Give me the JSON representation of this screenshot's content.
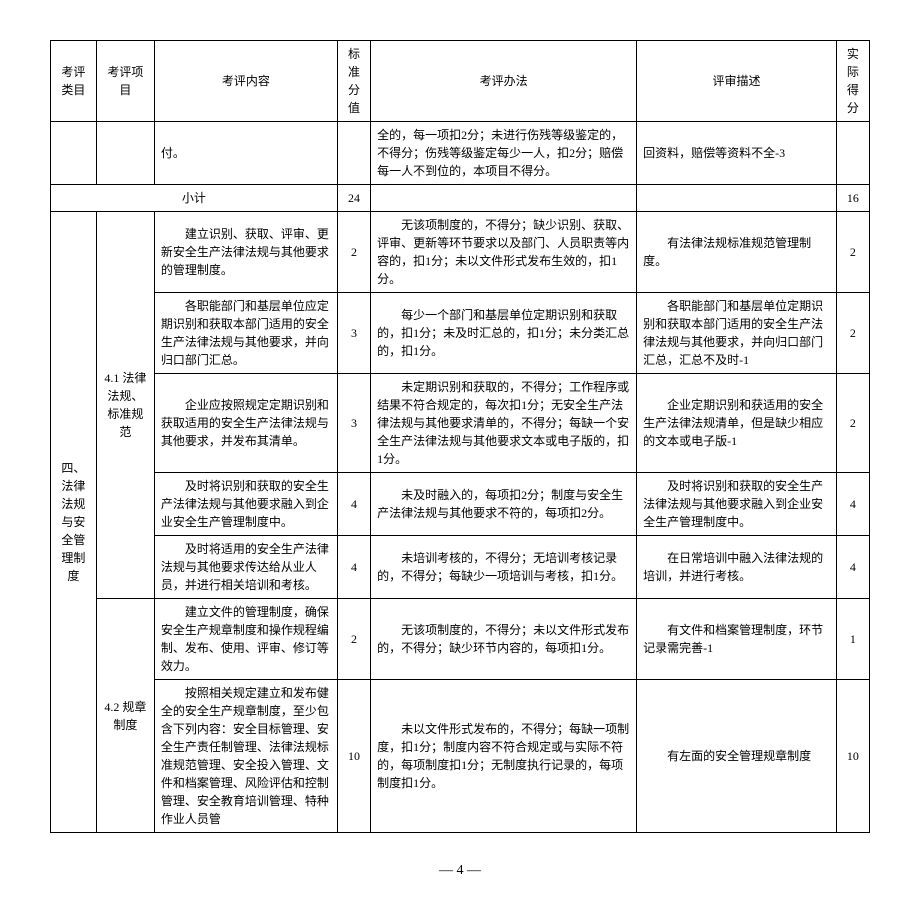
{
  "header": {
    "cat": "考评类目",
    "item": "考评项目",
    "content": "考评内容",
    "std": "标准分值",
    "method": "考评办法",
    "review": "评审描述",
    "actual": "实际得分"
  },
  "row_prev": {
    "content": "付。",
    "method": "全的，每一项扣2分；未进行伤残等级鉴定的，不得分；伤残等级鉴定每少一人，扣2分；赔偿每一人不到位的，本项目不得分。",
    "review": "回资料，赔偿等资料不全-3"
  },
  "subtotal": {
    "label": "小计",
    "std": "24",
    "actual": "16"
  },
  "section": {
    "cat": "四、法律法规与安全管理制度",
    "item41": "4.1 法律法规、标准规范",
    "item42": "4.2 规章制度"
  },
  "rows": [
    {
      "content": "　　建立识别、获取、评审、更新安全生产法律法规与其他要求的管理制度。",
      "std": "2",
      "method": "　　无该项制度的，不得分；缺少识别、获取、评审、更新等环节要求以及部门、人员职责等内容的，扣1分；未以文件形式发布生效的，扣1分。",
      "review": "　　有法律法规标准规范管理制度。",
      "actual": "2"
    },
    {
      "content": "　　各职能部门和基层单位应定期识别和获取本部门适用的安全生产法律法规与其他要求，并向归口部门汇总。",
      "std": "3",
      "method": "　　每少一个部门和基层单位定期识别和获取的，扣1分；未及时汇总的，扣1分；未分类汇总的，扣1分。",
      "review": "　　各职能部门和基层单位定期识别和获取本部门适用的安全生产法律法规与其他要求，并向归口部门汇总，汇总不及时-1",
      "actual": "2"
    },
    {
      "content": "　　企业应按照规定定期识别和获取适用的安全生产法律法规与其他要求，并发布其清单。",
      "std": "3",
      "method": "　　未定期识别和获取的，不得分；工作程序或结果不符合规定的，每次扣1分；无安全生产法律法规与其他要求清单的，不得分；每缺一个安全生产法律法规与其他要求文本或电子版的，扣1分。",
      "review": "　　企业定期识别和获适用的安全生产法律法规清单，但是缺少相应的文本或电子版-1",
      "actual": "2"
    },
    {
      "content": "　　及时将识别和获取的安全生产法律法规与其他要求融入到企业安全生产管理制度中。",
      "std": "4",
      "method": "　　未及时融入的，每项扣2分；制度与安全生产法律法规与其他要求不符的，每项扣2分。",
      "review": "　　及时将识别和获取的安全生产法律法规与其他要求融入到企业安全生产管理制度中。",
      "actual": "4"
    },
    {
      "content": "　　及时将适用的安全生产法律法规与其他要求传达给从业人员，并进行相关培训和考核。",
      "std": "4",
      "method": "　　未培训考核的，不得分；无培训考核记录的，不得分；每缺少一项培训与考核，扣1分。",
      "review": "　　在日常培训中融入法律法规的培训，并进行考核。",
      "actual": "4"
    },
    {
      "content": "　　建立文件的管理制度，确保安全生产规章制度和操作规程编制、发布、使用、评审、修订等效力。",
      "std": "2",
      "method": "　　无该项制度的，不得分；未以文件形式发布的，不得分；缺少环节内容的，每项扣1分。",
      "review": "　　有文件和档案管理制度，环节记录需完善-1",
      "actual": "1"
    },
    {
      "content": "　　按照相关规定建立和发布健全的安全生产规章制度，至少包含下列内容：安全目标管理、安全生产责任制管理、法律法规标准规范管理、安全投入管理、文件和档案管理、风险评估和控制管理、安全教育培训管理、特种作业人员管",
      "std": "10",
      "method": "　　未以文件形式发布的，不得分；每缺一项制度，扣1分；制度内容不符合规定或与实际不符的，每项制度扣1分；无制度执行记录的，每项制度扣1分。",
      "review": "　　有左面的安全管理规章制度",
      "actual": "10"
    }
  ],
  "page": "— 4 —"
}
